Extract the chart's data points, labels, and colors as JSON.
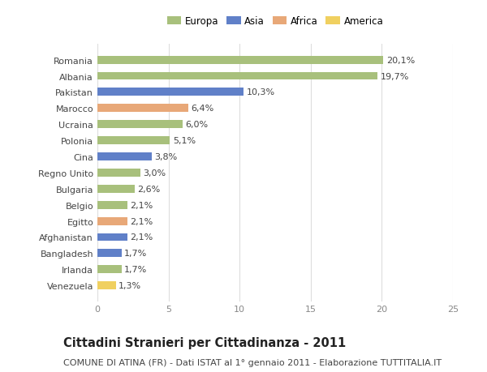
{
  "categories": [
    "Romania",
    "Albania",
    "Pakistan",
    "Marocco",
    "Ucraina",
    "Polonia",
    "Cina",
    "Regno Unito",
    "Bulgaria",
    "Belgio",
    "Egitto",
    "Afghanistan",
    "Bangladesh",
    "Irlanda",
    "Venezuela"
  ],
  "values": [
    20.1,
    19.7,
    10.3,
    6.4,
    6.0,
    5.1,
    3.8,
    3.0,
    2.6,
    2.1,
    2.1,
    2.1,
    1.7,
    1.7,
    1.3
  ],
  "labels": [
    "20,1%",
    "19,7%",
    "10,3%",
    "6,4%",
    "6,0%",
    "5,1%",
    "3,8%",
    "3,0%",
    "2,6%",
    "2,1%",
    "2,1%",
    "2,1%",
    "1,7%",
    "1,7%",
    "1,3%"
  ],
  "continents": [
    "Europa",
    "Europa",
    "Asia",
    "Africa",
    "Europa",
    "Europa",
    "Asia",
    "Europa",
    "Europa",
    "Europa",
    "Africa",
    "Asia",
    "Asia",
    "Europa",
    "America"
  ],
  "colors": {
    "Europa": "#a8c07c",
    "Asia": "#6080c8",
    "Africa": "#e8a878",
    "America": "#f0d060"
  },
  "xlim": [
    0,
    25
  ],
  "xticks": [
    0,
    5,
    10,
    15,
    20,
    25
  ],
  "title": "Cittadini Stranieri per Cittadinanza - 2011",
  "subtitle": "COMUNE DI ATINA (FR) - Dati ISTAT al 1° gennaio 2011 - Elaborazione TUTTITALIA.IT",
  "background_color": "#ffffff",
  "bar_height": 0.5,
  "grid_color": "#dddddd",
  "text_color": "#444444",
  "label_fontsize": 8,
  "tick_fontsize": 8,
  "title_fontsize": 10.5,
  "subtitle_fontsize": 8
}
